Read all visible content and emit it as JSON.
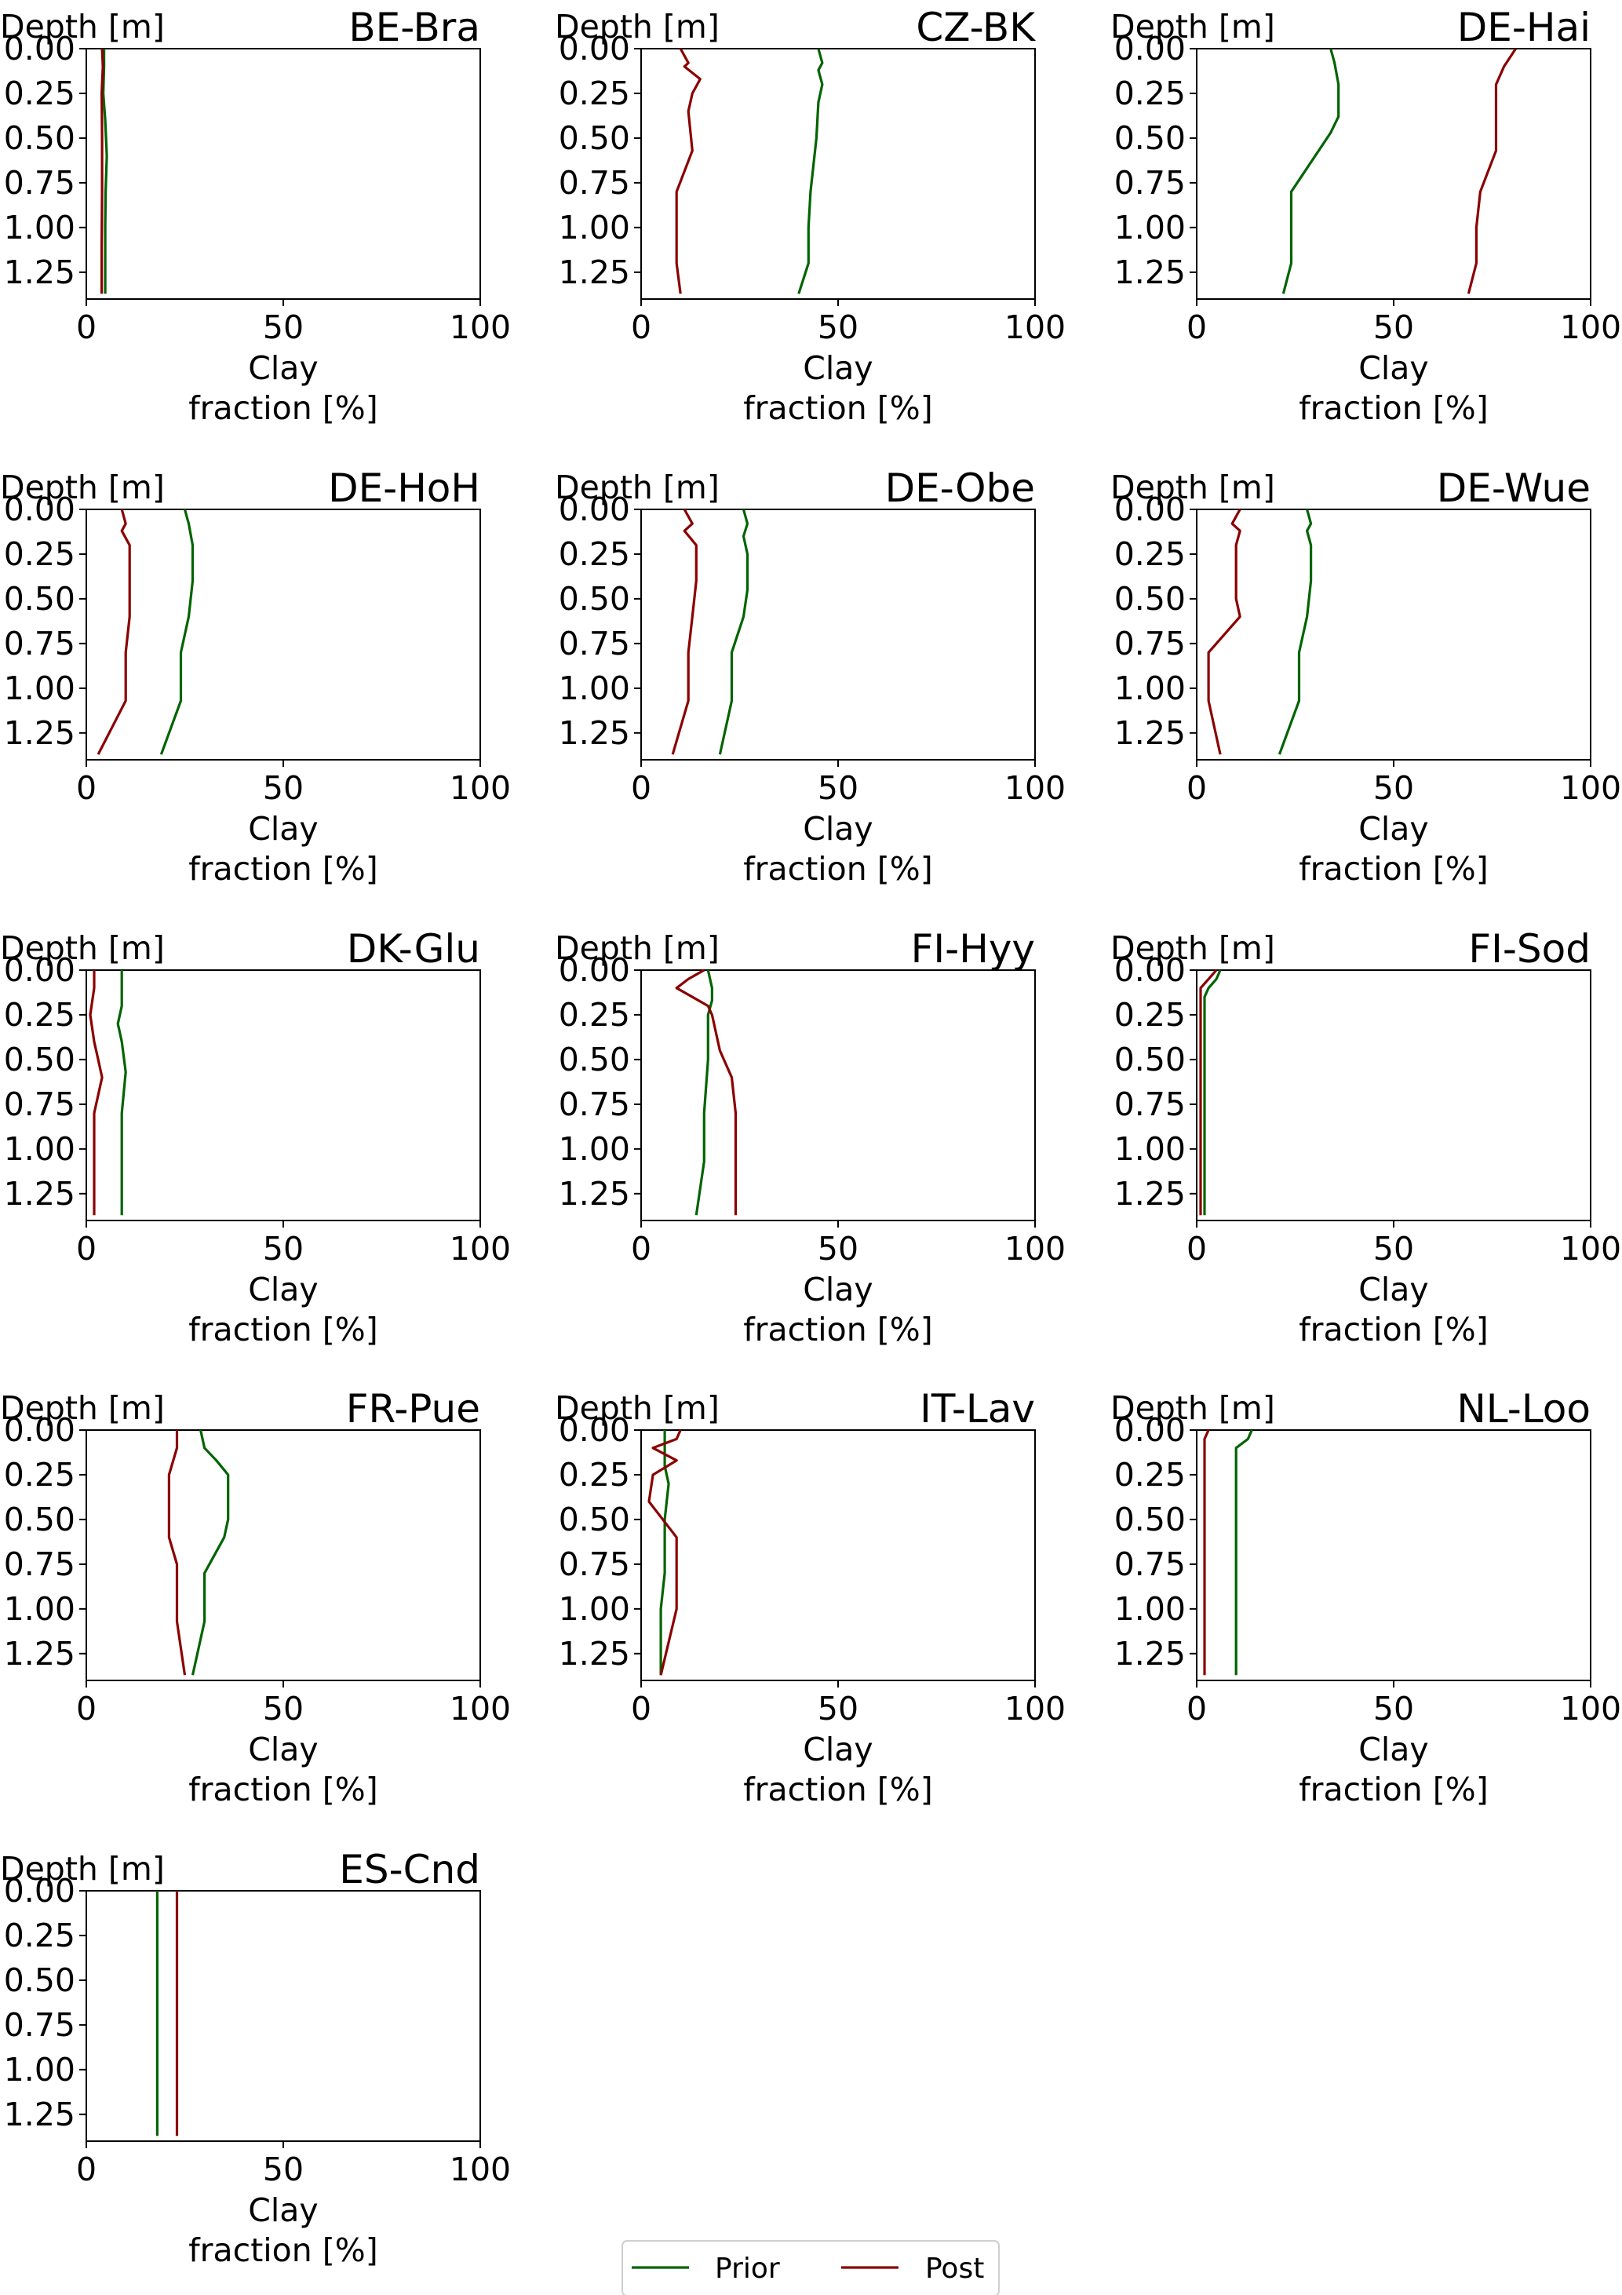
{
  "chart_data": {
    "type": "line",
    "xlabel": "Clay\nfraction [%]",
    "ylabel": "Depth [m]",
    "xlim": [
      0,
      100
    ],
    "ylim": [
      0,
      1.4
    ],
    "xticks": [
      "0",
      "50",
      "100"
    ],
    "yticks": [
      "0.00",
      "0.25",
      "0.50",
      "0.75",
      "1.00",
      "1.25"
    ],
    "legend": {
      "placement": "bottom-center",
      "entries": [
        {
          "name": "Prior",
          "color": "#006400"
        },
        {
          "name": "Post",
          "color": "#8b0000"
        }
      ]
    },
    "panels": [
      {
        "title": "BE-Bra",
        "series": [
          {
            "name": "Prior",
            "points": [
              [
                4.5,
                0.0
              ],
              [
                4.5,
                0.1
              ],
              [
                4.3,
                0.25
              ],
              [
                4.8,
                0.4
              ],
              [
                5.2,
                0.6
              ],
              [
                4.9,
                0.8
              ],
              [
                4.8,
                1.0
              ],
              [
                4.8,
                1.2
              ],
              [
                4.8,
                1.37
              ]
            ]
          },
          {
            "name": "Post",
            "points": [
              [
                4.0,
                0.0
              ],
              [
                4.2,
                0.1
              ],
              [
                3.9,
                0.25
              ],
              [
                4.0,
                0.5
              ],
              [
                4.0,
                0.8
              ],
              [
                3.9,
                1.1
              ],
              [
                3.9,
                1.37
              ]
            ]
          }
        ]
      },
      {
        "title": "CZ-BK",
        "series": [
          {
            "name": "Prior",
            "points": [
              [
                45,
                0.0
              ],
              [
                46,
                0.08
              ],
              [
                45,
                0.12
              ],
              [
                46,
                0.2
              ],
              [
                45,
                0.3
              ],
              [
                44.5,
                0.5
              ],
              [
                44,
                0.6
              ],
              [
                43,
                0.8
              ],
              [
                42.5,
                1.0
              ],
              [
                42.5,
                1.2
              ],
              [
                40,
                1.37
              ]
            ]
          },
          {
            "name": "Post",
            "points": [
              [
                10,
                0.0
              ],
              [
                12,
                0.08
              ],
              [
                11,
                0.1
              ],
              [
                15,
                0.17
              ],
              [
                13,
                0.25
              ],
              [
                12,
                0.35
              ],
              [
                13,
                0.57
              ],
              [
                9,
                0.8
              ],
              [
                9,
                1.0
              ],
              [
                9,
                1.2
              ],
              [
                10,
                1.37
              ]
            ]
          }
        ]
      },
      {
        "title": "DE-Hai",
        "series": [
          {
            "name": "Prior",
            "points": [
              [
                34,
                0.0
              ],
              [
                35,
                0.08
              ],
              [
                36,
                0.2
              ],
              [
                36,
                0.38
              ],
              [
                34,
                0.47
              ],
              [
                24,
                0.8
              ],
              [
                24,
                1.0
              ],
              [
                24,
                1.2
              ],
              [
                22,
                1.37
              ]
            ]
          },
          {
            "name": "Post",
            "points": [
              [
                81,
                0.0
              ],
              [
                78,
                0.1
              ],
              [
                76,
                0.2
              ],
              [
                76,
                0.4
              ],
              [
                76,
                0.57
              ],
              [
                72,
                0.8
              ],
              [
                71,
                1.0
              ],
              [
                71,
                1.2
              ],
              [
                69,
                1.37
              ]
            ]
          }
        ]
      },
      {
        "title": "DE-HoH",
        "series": [
          {
            "name": "Prior",
            "points": [
              [
                25,
                0.0
              ],
              [
                26,
                0.08
              ],
              [
                27,
                0.2
              ],
              [
                27,
                0.4
              ],
              [
                26,
                0.6
              ],
              [
                24,
                0.8
              ],
              [
                24,
                1.0
              ],
              [
                24,
                1.07
              ],
              [
                19,
                1.37
              ]
            ]
          },
          {
            "name": "Post",
            "points": [
              [
                9,
                0.0
              ],
              [
                10,
                0.08
              ],
              [
                9,
                0.12
              ],
              [
                11,
                0.2
              ],
              [
                11,
                0.4
              ],
              [
                11,
                0.6
              ],
              [
                10,
                0.8
              ],
              [
                10,
                1.0
              ],
              [
                10,
                1.07
              ],
              [
                3,
                1.37
              ]
            ]
          }
        ]
      },
      {
        "title": "DE-Obe",
        "series": [
          {
            "name": "Prior",
            "points": [
              [
                26,
                0.0
              ],
              [
                27,
                0.08
              ],
              [
                26,
                0.15
              ],
              [
                27,
                0.25
              ],
              [
                27,
                0.45
              ],
              [
                26,
                0.6
              ],
              [
                23,
                0.8
              ],
              [
                23,
                1.0
              ],
              [
                23,
                1.07
              ],
              [
                20,
                1.37
              ]
            ]
          },
          {
            "name": "Post",
            "points": [
              [
                11,
                0.0
              ],
              [
                13,
                0.08
              ],
              [
                11,
                0.12
              ],
              [
                14,
                0.2
              ],
              [
                14,
                0.4
              ],
              [
                13,
                0.6
              ],
              [
                12,
                0.8
              ],
              [
                12,
                1.0
              ],
              [
                12,
                1.07
              ],
              [
                8,
                1.37
              ]
            ]
          }
        ]
      },
      {
        "title": "DE-Wue",
        "series": [
          {
            "name": "Prior",
            "points": [
              [
                28,
                0.0
              ],
              [
                29,
                0.08
              ],
              [
                28,
                0.12
              ],
              [
                29,
                0.2
              ],
              [
                29,
                0.4
              ],
              [
                28,
                0.6
              ],
              [
                26,
                0.8
              ],
              [
                26,
                1.0
              ],
              [
                26,
                1.07
              ],
              [
                21,
                1.37
              ]
            ]
          },
          {
            "name": "Post",
            "points": [
              [
                11,
                0.0
              ],
              [
                9,
                0.08
              ],
              [
                11,
                0.12
              ],
              [
                10,
                0.2
              ],
              [
                10,
                0.5
              ],
              [
                11,
                0.6
              ],
              [
                3,
                0.8
              ],
              [
                3,
                1.0
              ],
              [
                3,
                1.07
              ],
              [
                6,
                1.37
              ]
            ]
          }
        ]
      },
      {
        "title": "DK-Glu",
        "series": [
          {
            "name": "Prior",
            "points": [
              [
                9,
                0.0
              ],
              [
                9,
                0.15
              ],
              [
                9,
                0.2
              ],
              [
                8,
                0.3
              ],
              [
                9,
                0.4
              ],
              [
                10,
                0.57
              ],
              [
                9,
                0.8
              ],
              [
                9,
                1.0
              ],
              [
                9,
                1.37
              ]
            ]
          },
          {
            "name": "Post",
            "points": [
              [
                2,
                0.0
              ],
              [
                2,
                0.1
              ],
              [
                1,
                0.25
              ],
              [
                2,
                0.4
              ],
              [
                3,
                0.5
              ],
              [
                4,
                0.6
              ],
              [
                2,
                0.8
              ],
              [
                2,
                1.0
              ],
              [
                2,
                1.37
              ]
            ]
          }
        ]
      },
      {
        "title": "FI-Hyy",
        "series": [
          {
            "name": "Prior",
            "points": [
              [
                17,
                0.0
              ],
              [
                18,
                0.1
              ],
              [
                18,
                0.17
              ],
              [
                17,
                0.25
              ],
              [
                17,
                0.5
              ],
              [
                16,
                0.8
              ],
              [
                16,
                1.07
              ],
              [
                14,
                1.37
              ]
            ]
          },
          {
            "name": "Post",
            "points": [
              [
                16,
                0.0
              ],
              [
                12,
                0.05
              ],
              [
                9,
                0.1
              ],
              [
                13,
                0.15
              ],
              [
                17,
                0.2
              ],
              [
                18,
                0.25
              ],
              [
                20,
                0.45
              ],
              [
                23,
                0.6
              ],
              [
                24,
                0.8
              ],
              [
                24,
                1.0
              ],
              [
                24,
                1.37
              ]
            ]
          }
        ]
      },
      {
        "title": "FI-Sod",
        "series": [
          {
            "name": "Prior",
            "points": [
              [
                6,
                0.0
              ],
              [
                5,
                0.05
              ],
              [
                3,
                0.1
              ],
              [
                2,
                0.15
              ],
              [
                2,
                0.3
              ],
              [
                2,
                1.37
              ]
            ]
          },
          {
            "name": "Post",
            "points": [
              [
                5,
                0.0
              ],
              [
                3,
                0.05
              ],
              [
                1,
                0.1
              ],
              [
                1,
                0.2
              ],
              [
                1,
                0.5
              ],
              [
                1,
                1.37
              ]
            ]
          }
        ]
      },
      {
        "title": "FR-Pue",
        "series": [
          {
            "name": "Prior",
            "points": [
              [
                29,
                0.0
              ],
              [
                30,
                0.1
              ],
              [
                33,
                0.17
              ],
              [
                36,
                0.25
              ],
              [
                36,
                0.5
              ],
              [
                35,
                0.6
              ],
              [
                30,
                0.8
              ],
              [
                30,
                1.07
              ],
              [
                27,
                1.37
              ]
            ]
          },
          {
            "name": "Post",
            "points": [
              [
                23,
                0.0
              ],
              [
                23,
                0.1
              ],
              [
                21,
                0.25
              ],
              [
                21,
                0.5
              ],
              [
                21,
                0.6
              ],
              [
                23,
                0.75
              ],
              [
                23,
                1.07
              ],
              [
                25,
                1.37
              ]
            ]
          }
        ]
      },
      {
        "title": "IT-Lav",
        "series": [
          {
            "name": "Prior",
            "points": [
              [
                6,
                0.0
              ],
              [
                6,
                0.1
              ],
              [
                6,
                0.2
              ],
              [
                7,
                0.3
              ],
              [
                6,
                0.5
              ],
              [
                6,
                0.8
              ],
              [
                5,
                1.0
              ],
              [
                5,
                1.37
              ]
            ]
          },
          {
            "name": "Post",
            "points": [
              [
                10,
                0.0
              ],
              [
                9,
                0.05
              ],
              [
                3,
                0.1
              ],
              [
                9,
                0.17
              ],
              [
                3,
                0.25
              ],
              [
                2,
                0.4
              ],
              [
                9,
                0.6
              ],
              [
                9,
                1.0
              ],
              [
                5,
                1.37
              ]
            ]
          }
        ]
      },
      {
        "title": "NL-Loo",
        "series": [
          {
            "name": "Prior",
            "points": [
              [
                14,
                0.0
              ],
              [
                13,
                0.05
              ],
              [
                10,
                0.1
              ],
              [
                10,
                0.2
              ],
              [
                10,
                0.3
              ],
              [
                10,
                0.5
              ],
              [
                10,
                0.8
              ],
              [
                10,
                1.0
              ],
              [
                10,
                1.37
              ]
            ]
          },
          {
            "name": "Post",
            "points": [
              [
                3,
                0.0
              ],
              [
                2,
                0.05
              ],
              [
                2,
                0.25
              ],
              [
                2,
                0.5
              ],
              [
                2,
                1.0
              ],
              [
                2,
                1.37
              ]
            ]
          }
        ]
      },
      {
        "title": "ES-Cnd",
        "series": [
          {
            "name": "Prior",
            "points": [
              [
                18,
                0.0
              ],
              [
                18,
                1.37
              ]
            ]
          },
          {
            "name": "Post",
            "points": [
              [
                23,
                0.0
              ],
              [
                23,
                1.37
              ]
            ]
          }
        ]
      }
    ]
  }
}
